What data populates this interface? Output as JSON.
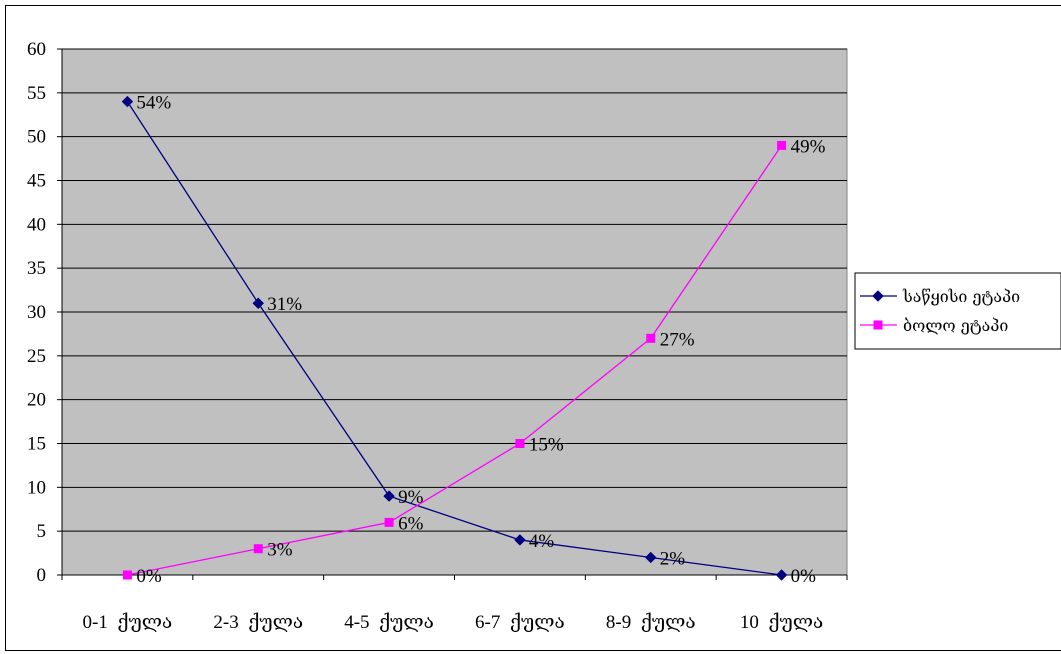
{
  "chart_data": {
    "type": "line",
    "title": "",
    "xlabel": "",
    "ylabel": "",
    "categories": [
      "0-1  ქულა",
      "2-3  ქულა",
      "4-5  ქულა",
      "6-7  ქულა",
      "8-9  ქულა",
      "10  ქულა"
    ],
    "ylim": [
      0,
      60
    ],
    "ytick_step": 5,
    "grid": true,
    "plot_background": "#C0C0C0",
    "legend_position": "right",
    "series": [
      {
        "name": "საწყისი ეტაპი",
        "values": [
          54,
          31,
          9,
          4,
          2,
          0
        ],
        "labels": [
          "54%",
          "31%",
          "9%",
          "4%",
          "2%",
          "0%"
        ],
        "color": "#000080",
        "marker": "diamond"
      },
      {
        "name": "ბოლო ეტაპი",
        "values": [
          0,
          3,
          6,
          15,
          27,
          49
        ],
        "labels": [
          "0%",
          "3%",
          "6%",
          "15%",
          "27%",
          "49%"
        ],
        "color": "#FF00FF",
        "marker": "square"
      }
    ]
  }
}
